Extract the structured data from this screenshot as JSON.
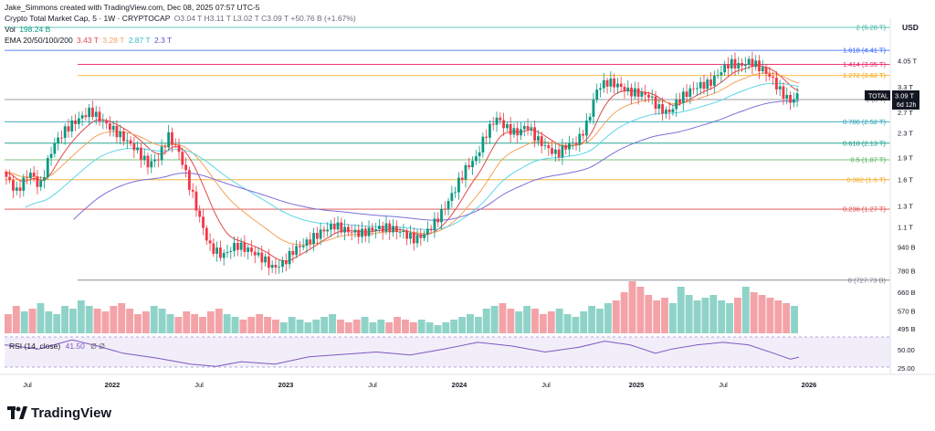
{
  "header": {
    "credit": "Jake_Simmons created with TradingView.com, Dec 08, 2025 07:57 UTC-5",
    "symbol": "Crypto Total Market Cap, 5 · 1W · CRYPTOCAP",
    "ohlc": "O3.04 T  H3.11 T  L3.02 T  C3.09 T  +50.76 B (+1.67%)",
    "vol_label": "Vol",
    "vol_value": "198.24 B",
    "ema_label": "EMA 20/50/100/200",
    "ema_values": [
      "3.43 T",
      "3.28 T",
      "2.87 T",
      "2.3 T"
    ],
    "ema_colors": [
      "#e04848",
      "#f3a35b",
      "#5fd4e8",
      "#7b6fd6"
    ],
    "rsi_label": "RSI (14, close)",
    "rsi_value": "41.50",
    "rsi_extra": "Ø   Ø"
  },
  "currency": "USD",
  "logo_text": "TradingView",
  "price_badge": {
    "name": "TOTAL",
    "value": "3.09 T",
    "countdown": "6d 12h"
  },
  "chart_data": {
    "type": "candlestick",
    "title": "Crypto Total Market Cap, 5 · 1W · CRYPTOCAP",
    "x_ticks": [
      "Jul",
      "2022",
      "Jul",
      "2023",
      "Jul",
      "2024",
      "Jul",
      "2025",
      "Jul",
      "2026"
    ],
    "y_ticks": [
      "4.05 T",
      "3.3 T",
      "2.7 T",
      "2.3 T",
      "1.9 T",
      "1.6 T",
      "1.3 T",
      "1.1 T",
      "940 B",
      "780 B",
      "660 B",
      "570 B",
      "495 B"
    ],
    "rsi_ticks": [
      "50.00",
      "25.00"
    ],
    "fib_levels": [
      {
        "label": "2 (5.28 T)",
        "value": 5.28,
        "color": "#2fb3a0"
      },
      {
        "label": "1.618 (4.41 T)",
        "value": 4.41,
        "color": "#2962ff"
      },
      {
        "label": "1.414 (3.95 T)",
        "value": 3.95,
        "color": "#e91e63"
      },
      {
        "label": "1.272 (3.62 T)",
        "value": 3.62,
        "color": "#f59f00"
      },
      {
        "label": "1 (3 T)",
        "value": 3.0,
        "color": "#787b86"
      },
      {
        "label": "0.786 (2.52 T)",
        "value": 2.52,
        "color": "#26a0b5"
      },
      {
        "label": "0.618 (2.13 T)",
        "value": 2.13,
        "color": "#089981"
      },
      {
        "label": "0.5 (1.87 T)",
        "value": 1.87,
        "color": "#4caf50"
      },
      {
        "label": "0.382 (1.6 T)",
        "value": 1.6,
        "color": "#f5a623"
      },
      {
        "label": "0.236 (1.27 T)",
        "value": 1.27,
        "color": "#e04848"
      },
      {
        "label": "0 (727.73 B)",
        "value": 0.728,
        "color": "#787b86"
      }
    ],
    "close_path": [
      [
        0,
        1.7
      ],
      [
        8,
        1.45
      ],
      [
        16,
        1.7
      ],
      [
        22,
        1.5
      ],
      [
        30,
        2.1
      ],
      [
        38,
        2.4
      ],
      [
        46,
        2.6
      ],
      [
        52,
        2.75
      ],
      [
        58,
        2.55
      ],
      [
        64,
        2.4
      ],
      [
        70,
        2.25
      ],
      [
        78,
        2.05
      ],
      [
        86,
        1.8
      ],
      [
        92,
        1.9
      ],
      [
        98,
        2.25
      ],
      [
        104,
        2.0
      ],
      [
        110,
        1.55
      ],
      [
        116,
        1.2
      ],
      [
        122,
        0.95
      ],
      [
        130,
        0.88
      ],
      [
        138,
        0.96
      ],
      [
        146,
        0.92
      ],
      [
        154,
        0.86
      ],
      [
        160,
        0.8
      ],
      [
        166,
        0.83
      ],
      [
        172,
        0.92
      ],
      [
        180,
        0.98
      ],
      [
        188,
        1.06
      ],
      [
        196,
        1.12
      ],
      [
        204,
        1.07
      ],
      [
        212,
        1.05
      ],
      [
        220,
        1.09
      ],
      [
        228,
        1.1
      ],
      [
        236,
        1.06
      ],
      [
        244,
        1.0
      ],
      [
        250,
        1.05
      ],
      [
        256,
        1.15
      ],
      [
        262,
        1.3
      ],
      [
        268,
        1.5
      ],
      [
        274,
        1.75
      ],
      [
        280,
        1.9
      ],
      [
        286,
        2.3
      ],
      [
        292,
        2.6
      ],
      [
        298,
        2.4
      ],
      [
        304,
        2.3
      ],
      [
        310,
        2.45
      ],
      [
        316,
        2.2
      ],
      [
        322,
        2.05
      ],
      [
        328,
        1.95
      ],
      [
        334,
        2.1
      ],
      [
        340,
        2.15
      ],
      [
        346,
        2.5
      ],
      [
        352,
        3.3
      ],
      [
        358,
        3.45
      ],
      [
        364,
        3.35
      ],
      [
        370,
        3.2
      ],
      [
        376,
        3.15
      ],
      [
        382,
        3.1
      ],
      [
        388,
        2.8
      ],
      [
        394,
        2.7
      ],
      [
        400,
        3.0
      ],
      [
        406,
        3.2
      ],
      [
        412,
        3.35
      ],
      [
        418,
        3.4
      ],
      [
        424,
        3.7
      ],
      [
        430,
        4.0
      ],
      [
        436,
        3.9
      ],
      [
        442,
        4.05
      ],
      [
        448,
        3.85
      ],
      [
        454,
        3.6
      ],
      [
        460,
        3.2
      ],
      [
        466,
        2.95
      ],
      [
        470,
        3.09
      ]
    ],
    "volume_bars": [
      0.35,
      0.5,
      0.4,
      0.45,
      0.55,
      0.4,
      0.35,
      0.5,
      0.45,
      0.6,
      0.5,
      0.45,
      0.4,
      0.5,
      0.55,
      0.45,
      0.35,
      0.4,
      0.5,
      0.45,
      0.35,
      0.3,
      0.4,
      0.35,
      0.3,
      0.4,
      0.45,
      0.35,
      0.3,
      0.25,
      0.3,
      0.35,
      0.3,
      0.25,
      0.2,
      0.3,
      0.25,
      0.2,
      0.25,
      0.3,
      0.35,
      0.25,
      0.2,
      0.25,
      0.3,
      0.2,
      0.25,
      0.2,
      0.3,
      0.25,
      0.2,
      0.25,
      0.2,
      0.15,
      0.2,
      0.25,
      0.3,
      0.35,
      0.3,
      0.45,
      0.5,
      0.55,
      0.45,
      0.4,
      0.5,
      0.45,
      0.35,
      0.4,
      0.45,
      0.35,
      0.3,
      0.4,
      0.5,
      0.45,
      0.55,
      0.6,
      0.75,
      0.95,
      0.85,
      0.7,
      0.6,
      0.65,
      0.55,
      0.85,
      0.7,
      0.6,
      0.65,
      0.7,
      0.6,
      0.55,
      0.65,
      0.85,
      0.75,
      0.7,
      0.65,
      0.6,
      0.55,
      0.5
    ],
    "rsi_path": [
      [
        0,
        62
      ],
      [
        20,
        55
      ],
      [
        40,
        70
      ],
      [
        55,
        60
      ],
      [
        70,
        48
      ],
      [
        90,
        40
      ],
      [
        110,
        30
      ],
      [
        125,
        26
      ],
      [
        140,
        34
      ],
      [
        160,
        30
      ],
      [
        180,
        42
      ],
      [
        200,
        46
      ],
      [
        220,
        50
      ],
      [
        240,
        45
      ],
      [
        260,
        55
      ],
      [
        280,
        66
      ],
      [
        300,
        60
      ],
      [
        320,
        50
      ],
      [
        340,
        58
      ],
      [
        355,
        68
      ],
      [
        370,
        62
      ],
      [
        385,
        48
      ],
      [
        395,
        55
      ],
      [
        410,
        62
      ],
      [
        425,
        66
      ],
      [
        440,
        62
      ],
      [
        455,
        48
      ],
      [
        465,
        38
      ],
      [
        470,
        41.5
      ]
    ]
  }
}
